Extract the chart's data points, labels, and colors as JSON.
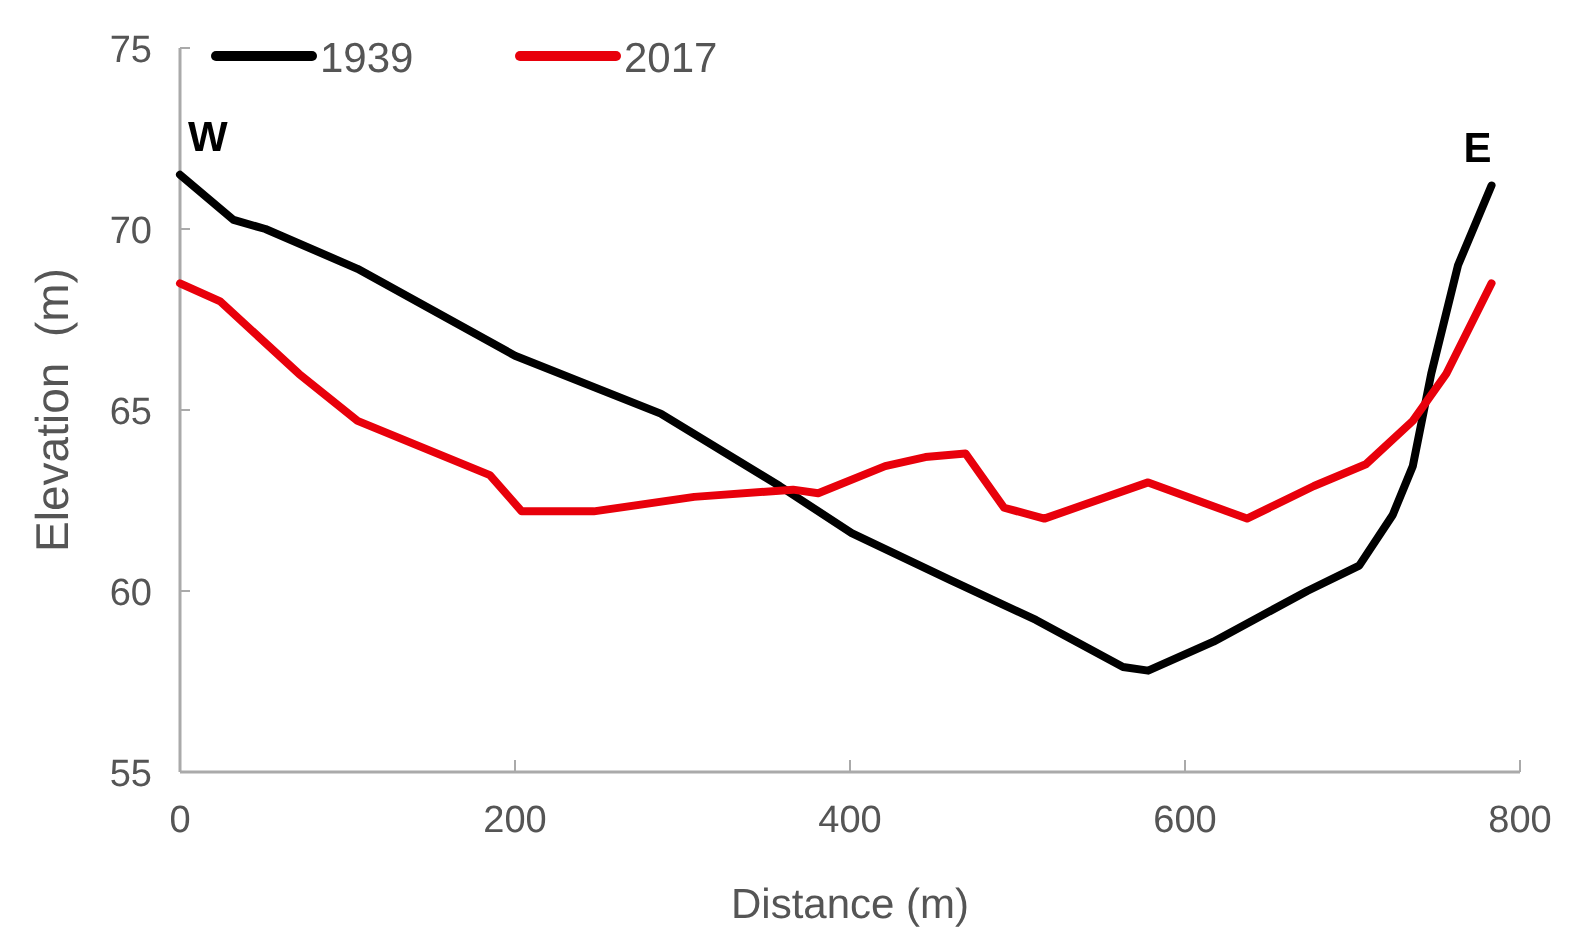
{
  "chart_data": {
    "type": "line",
    "xlabel": "Distance (m)",
    "ylabel": "Elevation  (m)",
    "xlim": [
      0,
      800
    ],
    "xticks": [
      0,
      200,
      400,
      600,
      800
    ],
    "ylim": [
      55,
      75
    ],
    "yticks": [
      55,
      60,
      65,
      70,
      75
    ],
    "legend": "top left",
    "grid": false,
    "marker": "none",
    "annotations": [
      {
        "text": "W",
        "x": 0,
        "y": 71.5
      },
      {
        "text": "E",
        "x": 783,
        "y": 71.2
      }
    ],
    "series": [
      {
        "name": "1939",
        "color": "#000000",
        "x": [
          0,
          32,
          51,
          106,
          200,
          287,
          358,
          401,
          460,
          511,
          563,
          578,
          617,
          673,
          704,
          724,
          736,
          747,
          763,
          783
        ],
        "values": [
          71.5,
          70.25,
          70.0,
          68.9,
          66.5,
          64.9,
          62.9,
          61.6,
          60.3,
          59.2,
          57.9,
          57.8,
          58.6,
          60.0,
          60.7,
          62.1,
          63.45,
          66.0,
          69.0,
          71.2
        ]
      },
      {
        "name": "2017",
        "color": "#e8000b",
        "x": [
          0,
          24,
          71,
          106,
          185,
          204,
          247,
          307,
          366,
          381,
          421,
          445,
          469,
          492,
          516,
          578,
          637,
          677,
          708,
          736,
          756,
          783
        ],
        "values": [
          68.5,
          68.0,
          66.0,
          64.7,
          63.2,
          62.2,
          62.2,
          62.6,
          62.8,
          62.7,
          63.45,
          63.7,
          63.8,
          62.3,
          62.0,
          63.0,
          62.0,
          62.9,
          63.5,
          64.7,
          66.0,
          68.5
        ]
      }
    ]
  }
}
